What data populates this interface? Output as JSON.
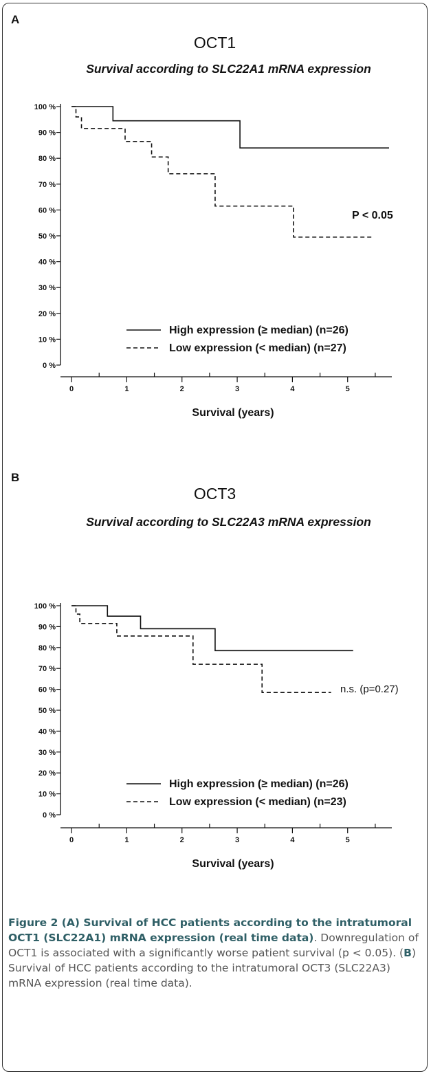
{
  "chart_data": [
    {
      "type": "line",
      "panel": "A",
      "title": "OCT1",
      "subtitle": "Survival according to SLC22A1 mRNA expression",
      "xlabel": "Survival (years)",
      "ylabel": "",
      "xlim": [
        -0.2,
        5.8
      ],
      "ylim": [
        0,
        100
      ],
      "x_ticks": [
        "0",
        "1",
        "2",
        "3",
        "4",
        "5"
      ],
      "y_ticks": [
        "0 %",
        "10 %",
        "20 %",
        "30 %",
        "40 %",
        "50 %",
        "60 %",
        "70 %",
        "80 %",
        "90 %",
        "100 %"
      ],
      "annotation": "P < 0.05",
      "legend_position": "bottom-right",
      "series": [
        {
          "name": "High expression (≥ median) (n=26)",
          "style": "solid",
          "steps": [
            [
              0,
              100
            ],
            [
              0.75,
              94.5
            ],
            [
              3.05,
              84
            ],
            [
              5.75,
              84
            ]
          ]
        },
        {
          "name": "Low expression (< median) (n=27)",
          "style": "dashed",
          "steps": [
            [
              0,
              100
            ],
            [
              0.08,
              96
            ],
            [
              0.18,
              91.5
            ],
            [
              0.97,
              86.5
            ],
            [
              1.45,
              80.5
            ],
            [
              1.75,
              74
            ],
            [
              2.6,
              61.5
            ],
            [
              4.02,
              49.5
            ],
            [
              5.45,
              49.5
            ]
          ]
        }
      ]
    },
    {
      "type": "line",
      "panel": "B",
      "title": "OCT3",
      "subtitle": "Survival according to SLC22A3 mRNA expression",
      "xlabel": "Survival (years)",
      "ylabel": "",
      "xlim": [
        -0.2,
        5.8
      ],
      "ylim": [
        0,
        100
      ],
      "x_ticks": [
        "0",
        "1",
        "2",
        "3",
        "4",
        "5"
      ],
      "y_ticks": [
        "0 %",
        "10 %",
        "20 %",
        "30 %",
        "40 %",
        "50 %",
        "60 %",
        "70 %",
        "80 %",
        "90 %",
        "100 %"
      ],
      "annotation": "n.s. (p=0.27)",
      "legend_position": "bottom-right",
      "series": [
        {
          "name": "High expression (≥ median) (n=26)",
          "style": "solid",
          "steps": [
            [
              0,
              100
            ],
            [
              0.65,
              95
            ],
            [
              1.25,
              89
            ],
            [
              2.6,
              78.5
            ],
            [
              5.1,
              78.5
            ]
          ]
        },
        {
          "name": "Low expression (< median) (n=23)",
          "style": "dashed",
          "steps": [
            [
              0,
              100
            ],
            [
              0.08,
              96
            ],
            [
              0.15,
              91.5
            ],
            [
              0.82,
              85.5
            ],
            [
              2.2,
              72
            ],
            [
              3.45,
              58.5
            ],
            [
              4.7,
              58.5
            ]
          ]
        }
      ]
    }
  ],
  "caption": {
    "head": "Figure 2 (A) Survival of HCC patients according to the intratumoral OCT1 (SLC22A1) mRNA expression (real time data)",
    "body_1": ". Downregulation of OCT1 is associated with a significantly worse patient survival (p < 0.05). (",
    "panel_b": "B",
    "body_2": ") Survival of HCC patients according to the intratumoral OCT3 (SLC22A3) mRNA expression (real time data)."
  },
  "colors": {
    "line": "#111111",
    "caption_head": "#2f5f66",
    "caption_body": "#555555"
  }
}
